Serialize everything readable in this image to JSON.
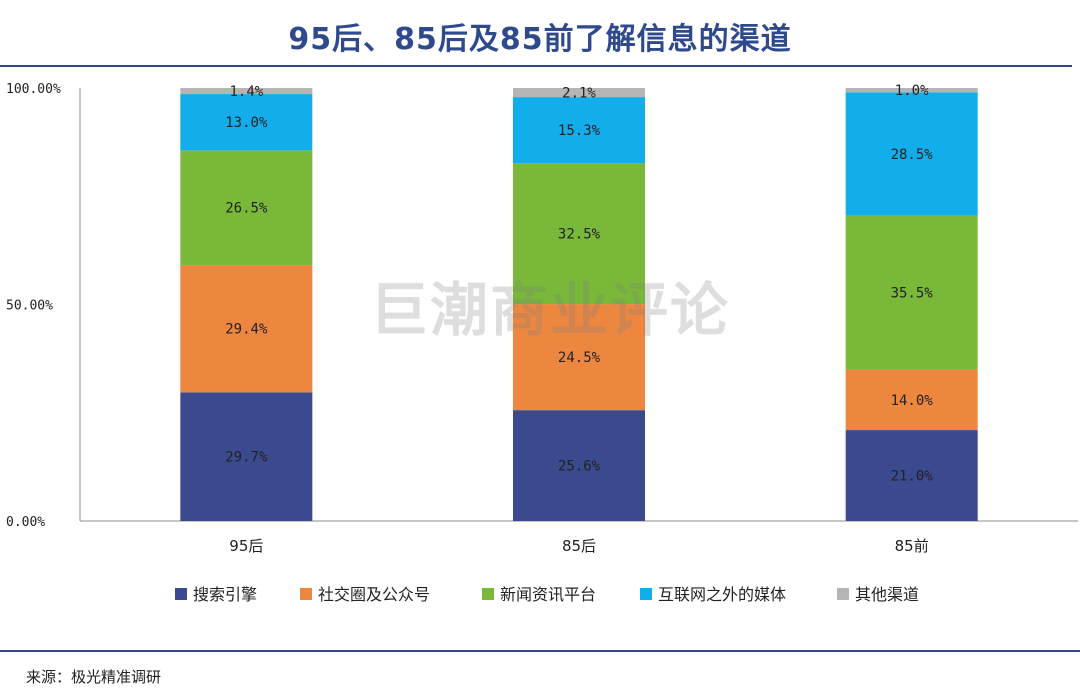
{
  "chart_data": {
    "type": "bar",
    "stacked": true,
    "title": "95后、85后及85前了解信息的渠道",
    "categories": [
      "95后",
      "85后",
      "85前"
    ],
    "ylim": [
      0,
      100
    ],
    "y_ticks": [
      "0.00%",
      "50.00%",
      "100.00%"
    ],
    "series": [
      {
        "name": "搜索引擎",
        "color": "#3b4a8e",
        "values": [
          29.7,
          25.6,
          21.0
        ],
        "labels": [
          "29.7%",
          "25.6%",
          "21.0%"
        ]
      },
      {
        "name": "社交圈及公众号",
        "color": "#ed8740",
        "values": [
          29.4,
          24.5,
          14.0
        ],
        "labels": [
          "29.4%",
          "24.5%",
          "14.0%"
        ]
      },
      {
        "name": "新闻资讯平台",
        "color": "#7ab83a",
        "values": [
          26.5,
          32.5,
          35.5
        ],
        "labels": [
          "26.5%",
          "32.5%",
          "35.5%"
        ]
      },
      {
        "name": "互联网之外的媒体",
        "color": "#12adeb",
        "values": [
          13.0,
          15.3,
          28.5
        ],
        "labels": [
          "13.0%",
          "15.3%",
          "28.5%"
        ]
      },
      {
        "name": "其他渠道",
        "color": "#b5b5b5",
        "values": [
          1.4,
          2.1,
          1.0
        ],
        "labels": [
          "1.4%",
          "2.1%",
          "1.0%"
        ]
      }
    ],
    "legend_position": "bottom"
  },
  "watermark": "巨潮商业评论",
  "source": "来源：极光精准调研"
}
